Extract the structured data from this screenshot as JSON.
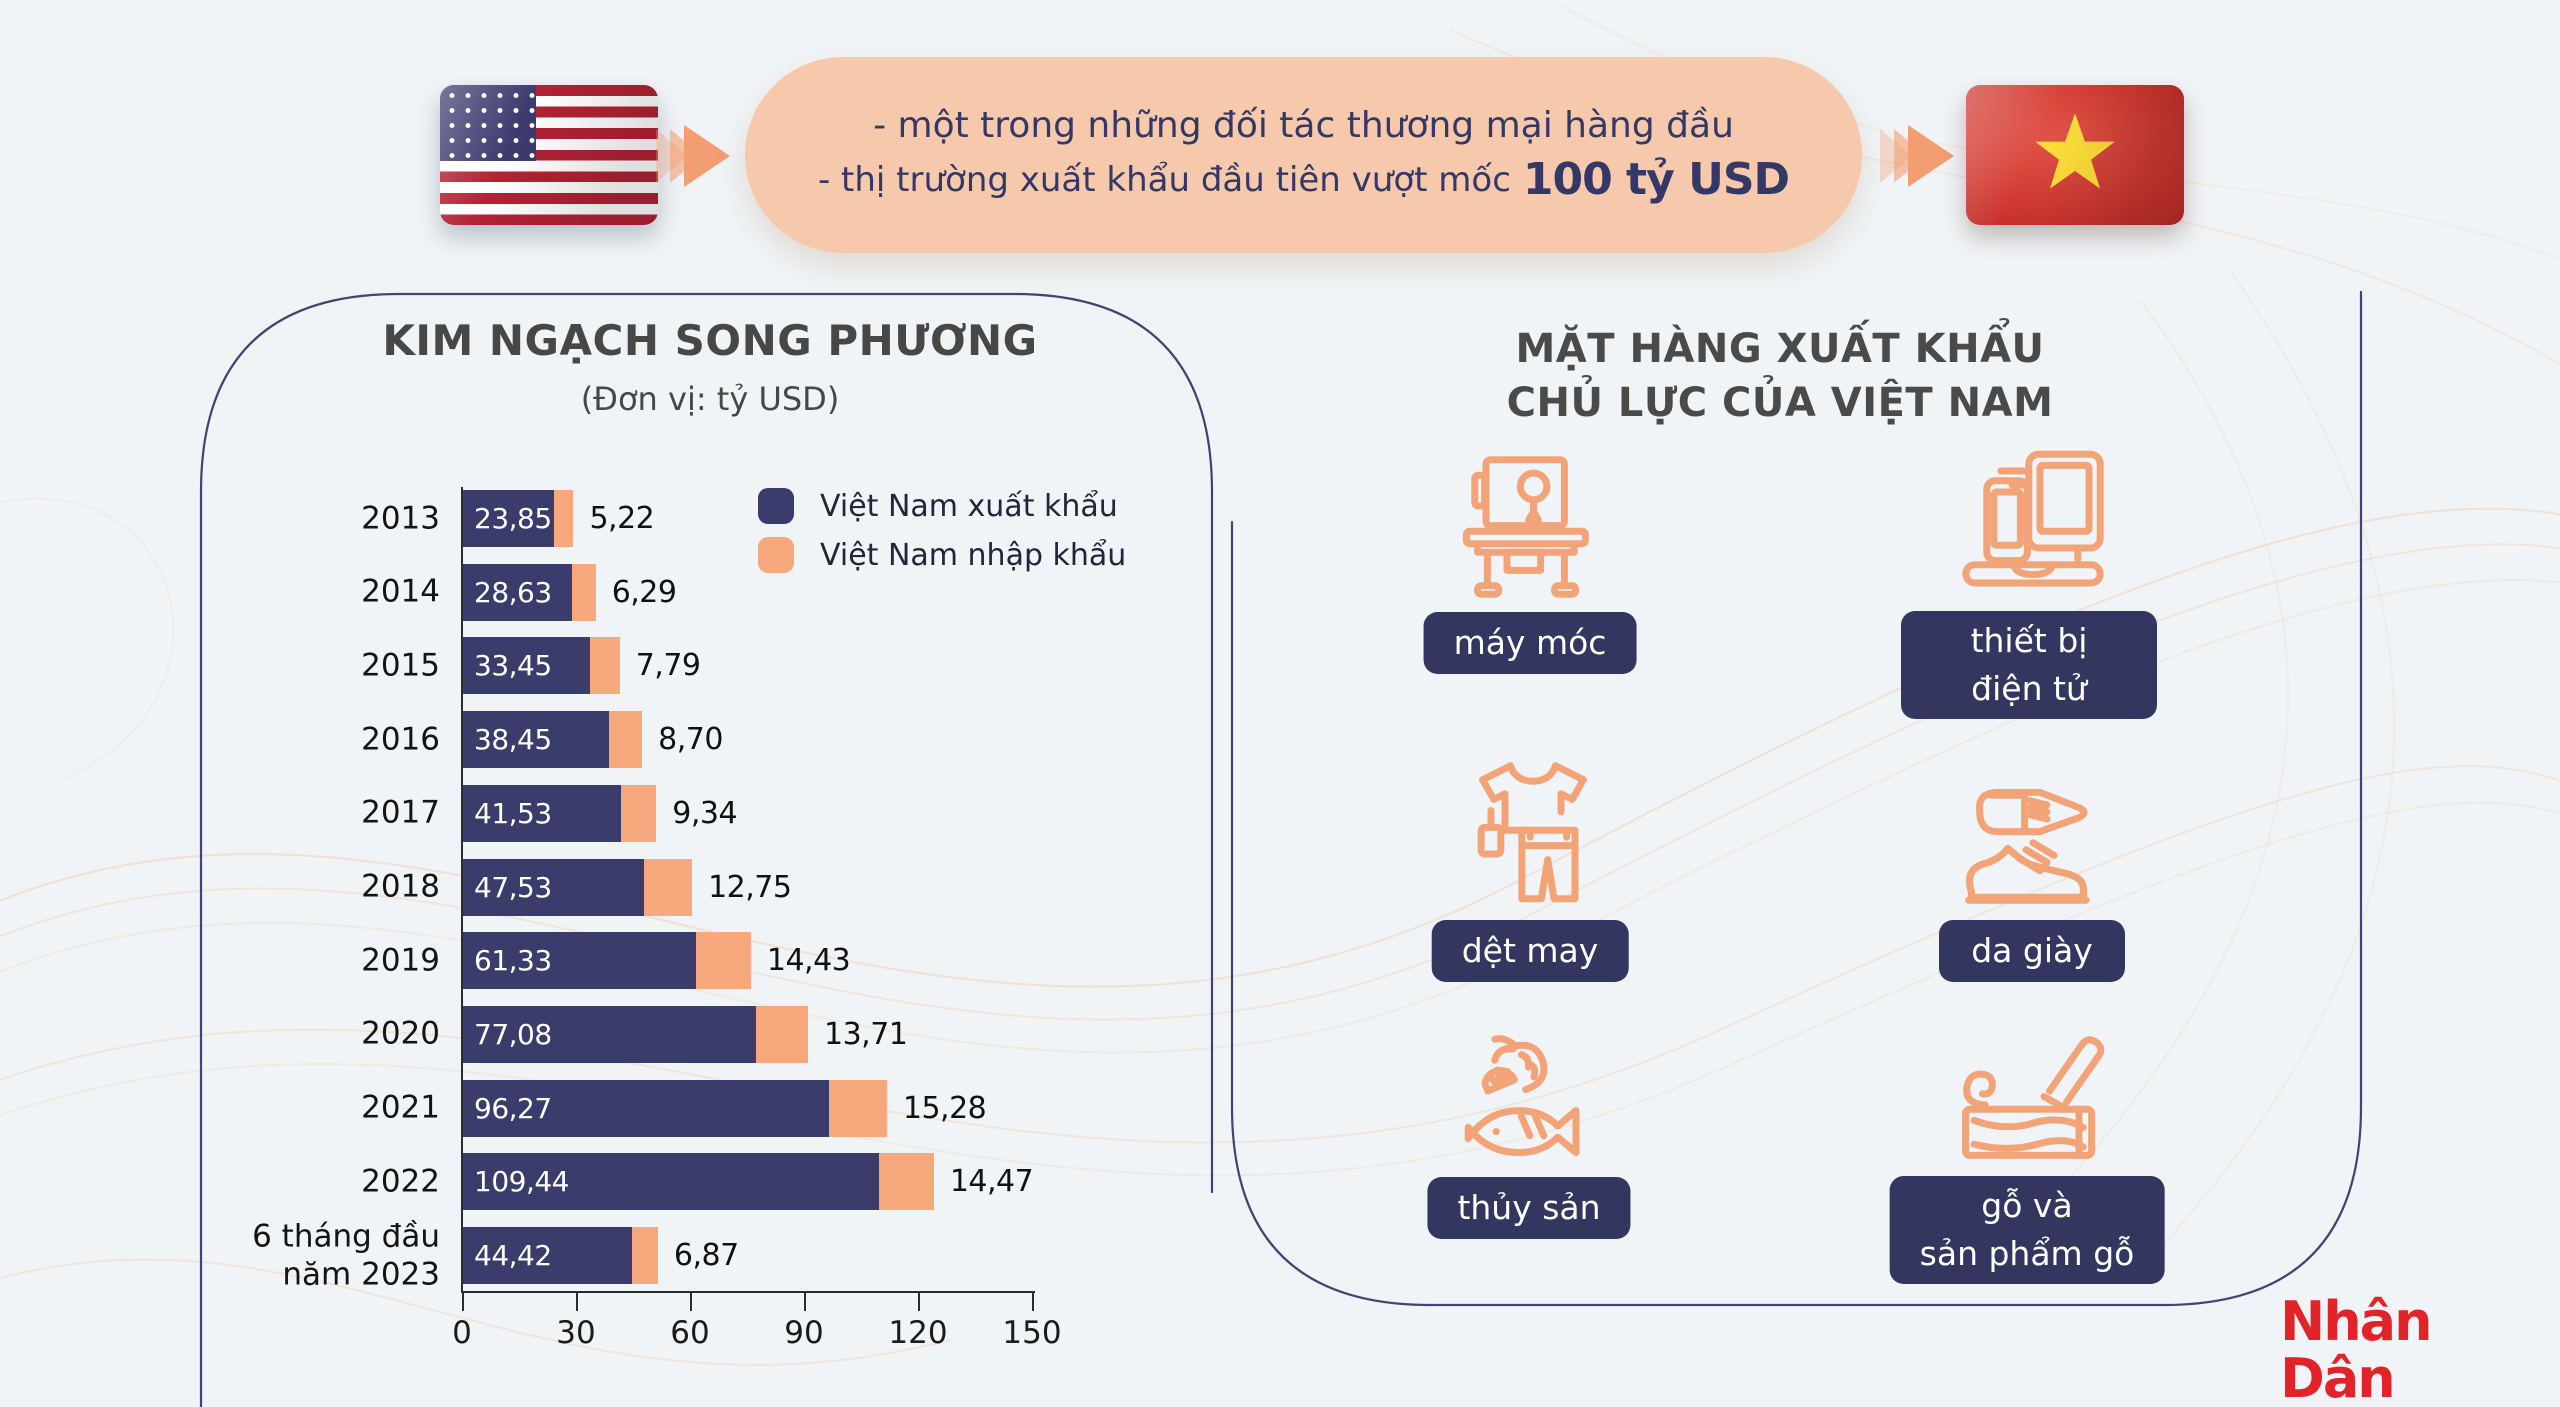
{
  "header": {
    "banner": {
      "line1": "- một trong những đối tác thương mại hàng đầu",
      "line2_prefix": "- thị trường xuất khẩu đầu tiên vượt mốc",
      "line2_highlight": "100 tỷ USD"
    }
  },
  "bilateral_chart": {
    "title": "KIM NGẠCH SONG PHƯƠNG",
    "subtitle": "(Đơn vị: tỷ USD)",
    "legend": [
      {
        "label": "Việt Nam xuất khẩu",
        "color": "#3a3d6b"
      },
      {
        "label": "Việt Nam nhập khẩu",
        "color": "#f7a87d"
      }
    ]
  },
  "chart_data": {
    "type": "bar",
    "orientation": "horizontal",
    "stacked": true,
    "title": "KIM NGẠCH SONG PHƯƠNG",
    "subtitle": "(Đơn vị: tỷ USD)",
    "unit": "tỷ USD",
    "categories": [
      "2013",
      "2014",
      "2015",
      "2016",
      "2017",
      "2018",
      "2019",
      "2020",
      "2021",
      "2022",
      "6 tháng đầu\nnăm 2023"
    ],
    "series": [
      {
        "name": "Việt Nam xuất khẩu",
        "color": "#3a3d6b",
        "values": [
          23.85,
          28.63,
          33.45,
          38.45,
          41.53,
          47.53,
          61.33,
          77.08,
          96.27,
          109.44,
          44.42
        ]
      },
      {
        "name": "Việt Nam nhập khẩu",
        "color": "#f7a87d",
        "values": [
          5.22,
          6.29,
          7.79,
          8.7,
          9.34,
          12.75,
          14.43,
          13.71,
          15.28,
          14.47,
          6.87
        ]
      }
    ],
    "x_ticks": [
      0,
      30,
      60,
      90,
      120,
      150
    ],
    "xlim": [
      0,
      150
    ],
    "grid": false,
    "legend_position": "top-right-inside",
    "value_label_format": "comma decimal, 2 dp"
  },
  "exports_panel": {
    "title_line1": "MẶT HÀNG XUẤT KHẨU",
    "title_line2": "CHỦ LỰC CỦA VIỆT NAM",
    "items": [
      {
        "label": "máy móc",
        "icon": "machinery-icon"
      },
      {
        "label": "thiết bị\nđiện tử",
        "icon": "electronics-icon"
      },
      {
        "label": "dệt may",
        "icon": "textile-icon"
      },
      {
        "label": "da giày",
        "icon": "footwear-icon"
      },
      {
        "label": "thủy sản",
        "icon": "seafood-icon"
      },
      {
        "label": "gỗ và\nsản phẩm gỗ",
        "icon": "wood-icon"
      }
    ]
  },
  "footer": {
    "publisher_logo_text": "Nhân Dân"
  },
  "colors": {
    "navy": "#3a3d6b",
    "orange": "#f7a87d",
    "banner_pink": "#f6c9ac",
    "background": "#f0f4f6",
    "logo_red": "#e1232a",
    "title_gray": "#474747"
  }
}
